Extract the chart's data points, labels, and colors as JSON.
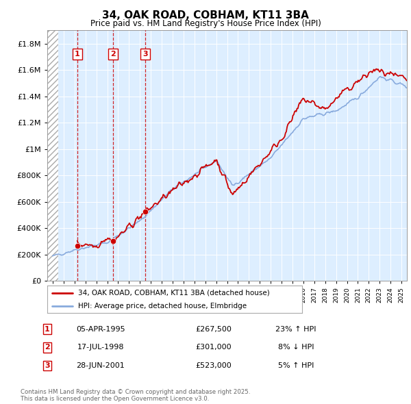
{
  "title": "34, OAK ROAD, COBHAM, KT11 3BA",
  "subtitle": "Price paid vs. HM Land Registry's House Price Index (HPI)",
  "legend_line1": "34, OAK ROAD, COBHAM, KT11 3BA (detached house)",
  "legend_line2": "HPI: Average price, detached house, Elmbridge",
  "footnote": "Contains HM Land Registry data © Crown copyright and database right 2025.\nThis data is licensed under the Open Government Licence v3.0.",
  "transactions": [
    {
      "num": 1,
      "date": "05-APR-1995",
      "price": 267500,
      "x": 1995.26,
      "pct": "23%",
      "dir": "↑"
    },
    {
      "num": 2,
      "date": "17-JUL-1998",
      "price": 301000,
      "x": 1998.54,
      "pct": "8%",
      "dir": "↓"
    },
    {
      "num": 3,
      "date": "28-JUN-2001",
      "price": 523000,
      "x": 2001.49,
      "pct": "5%",
      "dir": "↑"
    }
  ],
  "price_color": "#cc0000",
  "hpi_color": "#88aadd",
  "vline_color": "#cc0000",
  "ylim": [
    0,
    1900000
  ],
  "yticks": [
    0,
    200000,
    400000,
    600000,
    800000,
    1000000,
    1200000,
    1400000,
    1600000,
    1800000
  ],
  "xlim": [
    1992.5,
    2025.5
  ],
  "bg_color": "#ddeeff",
  "hatch_end": 1993.5
}
